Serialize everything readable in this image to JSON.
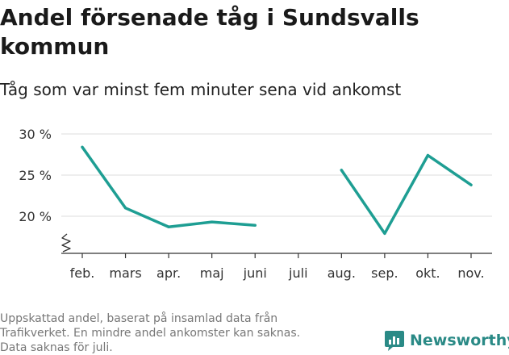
{
  "title_lines": [
    "Andel försenade tåg i Sundsvalls",
    "kommun"
  ],
  "subtitle": "Tåg som var minst fem minuter sena vid ankomst",
  "chart_data": {
    "type": "line",
    "title": "Andel försenade tåg i Sundsvalls kommun",
    "subtitle": "Tåg som var minst fem minuter sena vid ankomst",
    "categories": [
      "feb.",
      "mars",
      "apr.",
      "maj",
      "juni",
      "juli",
      "aug.",
      "sep.",
      "okt.",
      "nov."
    ],
    "series": [
      {
        "values": [
          28.4,
          21.0,
          18.7,
          19.3,
          18.9,
          null,
          25.6,
          17.9,
          27.4,
          23.8
        ]
      }
    ],
    "yticks": [
      20,
      25,
      30
    ],
    "ytick_labels": [
      "20 %",
      "25 %",
      "30 %"
    ],
    "ylim": [
      15,
      30
    ],
    "axis_break": true,
    "grid": true,
    "legend": "none",
    "line_color": "#1e9e93"
  },
  "footnote_lines": [
    "Uppskattad andel, baserat på insamlad data från",
    "Trafikverket. En mindre andel ankomster kan saknas.",
    "Data saknas för juli."
  ],
  "brand": {
    "name": "Newsworthy",
    "icon": "newsworthy-logo-icon",
    "color": "#2a8a86"
  }
}
